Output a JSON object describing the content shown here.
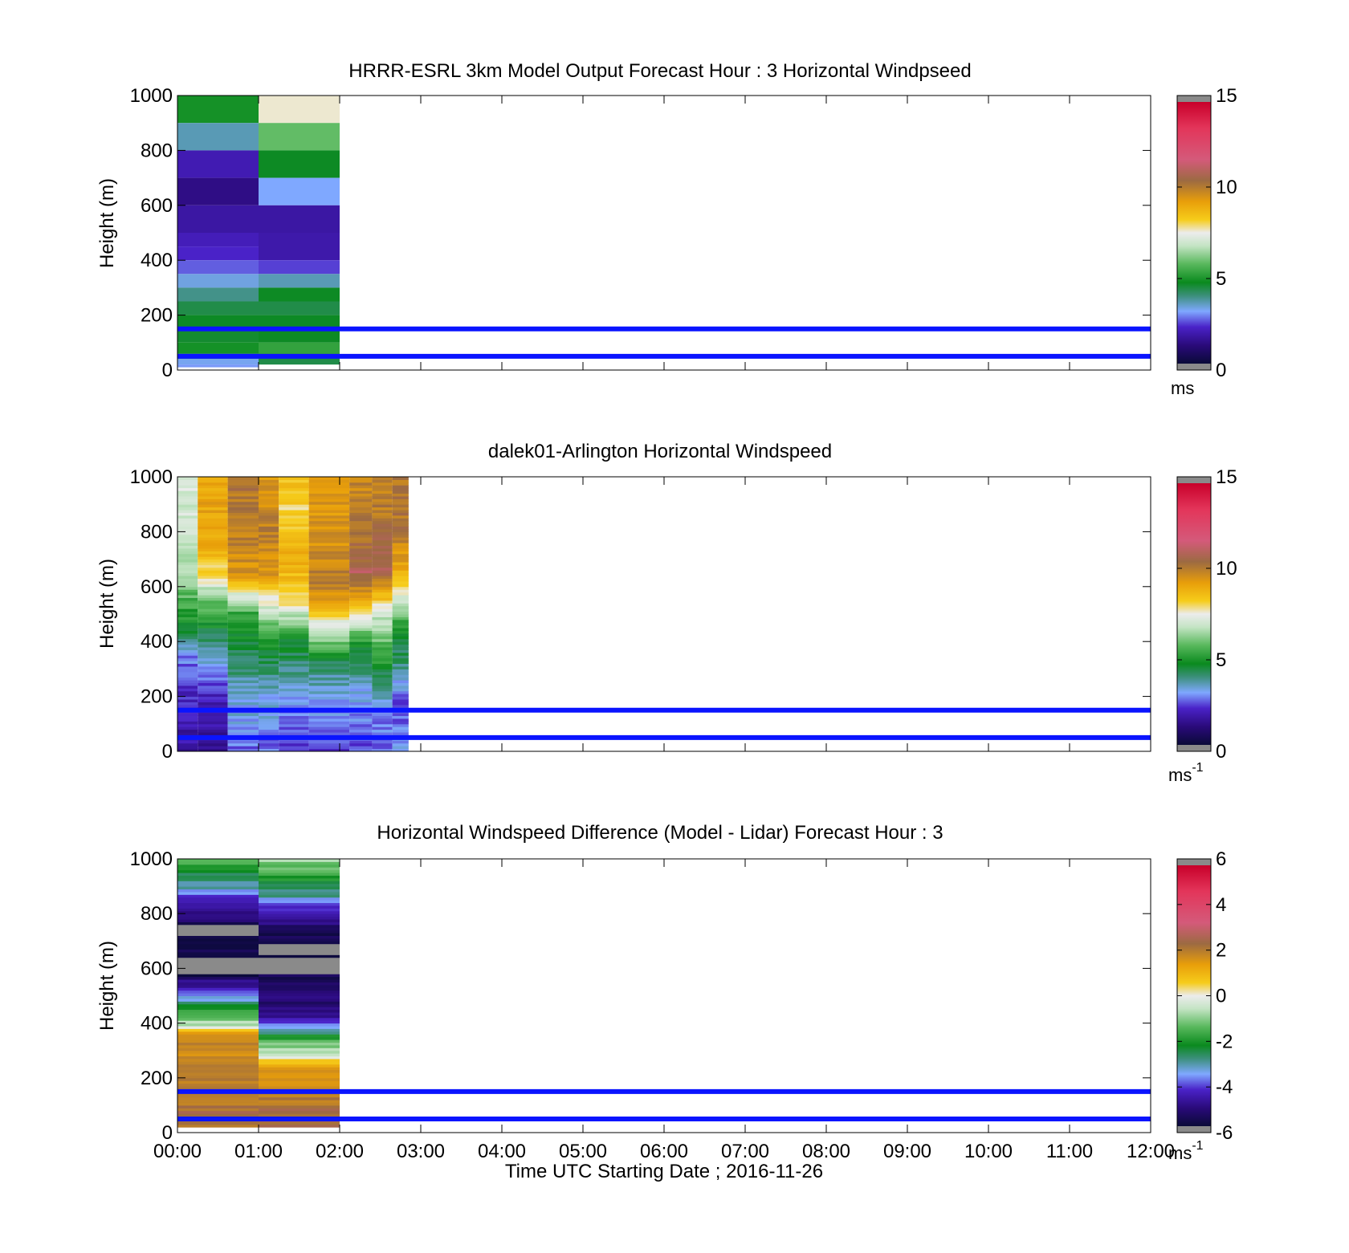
{
  "figure": {
    "x_tick_labels": [
      "00:00",
      "01:00",
      "02:00",
      "03:00",
      "04:00",
      "05:00",
      "06:00",
      "07:00",
      "08:00",
      "09:00",
      "10:00",
      "11:00",
      "12:00"
    ],
    "xlabel": "Time UTC  Starting Date ; 2016-11-26"
  },
  "chart_data": [
    {
      "type": "heatmap",
      "title": "HRRR-ESRL 3km Model Output   Forecast Hour : 3 Horizontal Windpseed",
      "ylabel": "Height (m)",
      "xlim_hours": [
        0,
        12
      ],
      "ylim": [
        0,
        1000
      ],
      "y_ticks": [
        0,
        200,
        400,
        600,
        800,
        1000
      ],
      "colorbar": {
        "min": 0,
        "max": 15,
        "ticks": [
          0,
          5,
          10,
          15
        ],
        "unit": "ms",
        "unit_sup": ""
      },
      "reference_lines_m": [
        50,
        150
      ],
      "reference_line_color": "#0a14ff",
      "columns": [
        {
          "t0": 0,
          "t1": 1,
          "bottom": 10,
          "top": 1000,
          "rows": [
            [
              1000,
              900,
              4.8
            ],
            [
              900,
              800,
              3.5
            ],
            [
              800,
              700,
              1.8
            ],
            [
              700,
              600,
              1.2
            ],
            [
              600,
              500,
              1.6
            ],
            [
              500,
              450,
              1.9
            ],
            [
              450,
              400,
              2.1
            ],
            [
              400,
              350,
              2.5
            ],
            [
              350,
              300,
              3.2
            ],
            [
              300,
              250,
              3.8
            ],
            [
              250,
              200,
              4.3
            ],
            [
              200,
              150,
              4.6
            ],
            [
              150,
              100,
              4.5
            ],
            [
              100,
              60,
              4.8
            ],
            [
              60,
              40,
              3.9
            ],
            [
              40,
              20,
              3.1
            ],
            [
              20,
              10,
              2.9
            ]
          ]
        },
        {
          "t0": 1,
          "t1": 2,
          "bottom": 20,
          "top": 1000,
          "rows": [
            [
              1000,
              900,
              7.6
            ],
            [
              900,
              800,
              5.8
            ],
            [
              800,
              700,
              4.6
            ],
            [
              700,
              600,
              3.0
            ],
            [
              600,
              500,
              1.6
            ],
            [
              500,
              400,
              1.7
            ],
            [
              400,
              350,
              2.3
            ],
            [
              350,
              300,
              3.5
            ],
            [
              300,
              250,
              4.6
            ],
            [
              250,
              200,
              4.3
            ],
            [
              200,
              100,
              4.6
            ],
            [
              100,
              50,
              5.2
            ],
            [
              50,
              20,
              4.3
            ]
          ]
        }
      ]
    },
    {
      "type": "heatmap",
      "title": "dalek01-Arlington  Horizontal Windspeed",
      "ylabel": "Height (m)",
      "xlim_hours": [
        0,
        12
      ],
      "ylim": [
        0,
        1000
      ],
      "y_ticks": [
        0,
        200,
        400,
        600,
        800,
        1000
      ],
      "colorbar": {
        "min": 0,
        "max": 15,
        "ticks": [
          0,
          5,
          10,
          15
        ],
        "unit": "ms",
        "unit_sup": "-1"
      },
      "reference_lines_m": [
        50,
        150
      ],
      "reference_line_color": "#0a14ff",
      "columns": [
        {
          "t0": 0.0,
          "t1": 0.25,
          "bottom": 0,
          "top": 1000,
          "profile": [
            [
              0,
              1.5
            ],
            [
              200,
              2.0
            ],
            [
              350,
              2.8
            ],
            [
              450,
              4.5
            ],
            [
              600,
              6.0
            ],
            [
              800,
              7.0
            ],
            [
              1000,
              7.2
            ]
          ]
        },
        {
          "t0": 0.25,
          "t1": 0.62,
          "bottom": 0,
          "top": 1000,
          "profile": [
            [
              0,
              1.3
            ],
            [
              200,
              2.0
            ],
            [
              400,
              3.8
            ],
            [
              550,
              6.0
            ],
            [
              650,
              8.0
            ],
            [
              800,
              9.2
            ],
            [
              1000,
              9.0
            ]
          ]
        },
        {
          "t0": 0.62,
          "t1": 1.0,
          "bottom": 0,
          "top": 1000,
          "profile": [
            [
              0,
              2.6
            ],
            [
              200,
              3.3
            ],
            [
              350,
              4.3
            ],
            [
              500,
              5.2
            ],
            [
              650,
              9.5
            ],
            [
              800,
              10.0
            ],
            [
              1000,
              10.3
            ]
          ]
        },
        {
          "t0": 1.0,
          "t1": 1.25,
          "bottom": 0,
          "top": 1000,
          "profile": [
            [
              0,
              2.5
            ],
            [
              200,
              3.3
            ],
            [
              350,
              4.4
            ],
            [
              500,
              6.5
            ],
            [
              650,
              9.5
            ],
            [
              800,
              10.0
            ],
            [
              1000,
              9.5
            ]
          ]
        },
        {
          "t0": 1.25,
          "t1": 1.62,
          "bottom": 0,
          "top": 1000,
          "profile": [
            [
              0,
              2.0
            ],
            [
              200,
              3.2
            ],
            [
              400,
              4.6
            ],
            [
              550,
              8.0
            ],
            [
              700,
              9.0
            ],
            [
              850,
              8.0
            ],
            [
              1000,
              8.5
            ]
          ]
        },
        {
          "t0": 1.62,
          "t1": 2.12,
          "bottom": 0,
          "top": 1000,
          "profile": [
            [
              0,
              2.2
            ],
            [
              150,
              2.8
            ],
            [
              300,
              3.8
            ],
            [
              450,
              7.0
            ],
            [
              600,
              10.2
            ],
            [
              750,
              9.6
            ],
            [
              1000,
              9.2
            ]
          ]
        },
        {
          "t0": 2.12,
          "t1": 2.4,
          "bottom": 0,
          "top": 1000,
          "profile": [
            [
              0,
              2.2
            ],
            [
              200,
              3.0
            ],
            [
              400,
              5.0
            ],
            [
              520,
              8.5
            ],
            [
              650,
              11.0
            ],
            [
              800,
              10.2
            ],
            [
              1000,
              9.8
            ]
          ]
        },
        {
          "t0": 2.4,
          "t1": 2.65,
          "bottom": 0,
          "top": 1000,
          "profile": [
            [
              0,
              2.5
            ],
            [
              150,
              2.8
            ],
            [
              300,
              4.6
            ],
            [
              500,
              7.0
            ],
            [
              650,
              10.8
            ],
            [
              800,
              10.3
            ],
            [
              1000,
              9.8
            ]
          ]
        },
        {
          "t0": 2.65,
          "t1": 2.85,
          "bottom": 0,
          "top": 1000,
          "profile": [
            [
              0,
              3.0
            ],
            [
              200,
              2.4
            ],
            [
              250,
              3.2
            ],
            [
              450,
              5.0
            ],
            [
              650,
              8.8
            ],
            [
              800,
              10.2
            ],
            [
              1000,
              10.2
            ]
          ]
        }
      ]
    },
    {
      "type": "heatmap",
      "title": "Horizontal Windspeed Difference (Model - Lidar) Forecast Hour : 3",
      "ylabel": "Height (m)",
      "xlim_hours": [
        0,
        12
      ],
      "ylim": [
        0,
        1000
      ],
      "y_ticks": [
        0,
        200,
        400,
        600,
        800,
        1000
      ],
      "colorbar": {
        "min": -6,
        "max": 6,
        "ticks": [
          -6,
          -4,
          -2,
          0,
          2,
          4,
          6
        ],
        "unit": "ms",
        "unit_sup": "-1"
      },
      "reference_lines_m": [
        50,
        150
      ],
      "reference_line_color": "#0a14ff",
      "columns": [
        {
          "t0": 0,
          "t1": 1,
          "bottom": 20,
          "top": 1000,
          "profile": [
            [
              1000,
              -1.5
            ],
            [
              930,
              -2.8
            ],
            [
              880,
              -3.5
            ],
            [
              860,
              -4.2
            ],
            [
              830,
              -5.0
            ],
            [
              780,
              -5.4
            ],
            [
              720,
              -5.8
            ],
            [
              720,
              -7
            ],
            [
              630,
              -7
            ],
            [
              630,
              -5.9
            ],
            [
              560,
              -5.3
            ],
            [
              520,
              -4.2
            ],
            [
              490,
              -3.4
            ],
            [
              460,
              -2.4
            ],
            [
              400,
              -0.8
            ],
            [
              385,
              -0.1
            ],
            [
              370,
              1.5
            ],
            [
              300,
              1.9
            ],
            [
              150,
              2.0
            ],
            [
              50,
              2.4
            ],
            [
              20,
              2.2
            ]
          ]
        },
        {
          "t0": 1,
          "t1": 2,
          "bottom": 20,
          "top": 1000,
          "profile": [
            [
              1000,
              -0.8
            ],
            [
              920,
              -2.3
            ],
            [
              860,
              -3.2
            ],
            [
              830,
              -4.4
            ],
            [
              780,
              -5.0
            ],
            [
              720,
              -5.6
            ],
            [
              650,
              -5.8
            ],
            [
              650,
              -7
            ],
            [
              580,
              -7
            ],
            [
              575,
              -5.7
            ],
            [
              500,
              -5.3
            ],
            [
              430,
              -5.0
            ],
            [
              400,
              -3.8
            ],
            [
              370,
              -2.8
            ],
            [
              320,
              -1.2
            ],
            [
              280,
              -0.4
            ],
            [
              260,
              1.0
            ],
            [
              200,
              1.7
            ],
            [
              100,
              2.3
            ],
            [
              20,
              2.5
            ]
          ]
        }
      ]
    }
  ]
}
